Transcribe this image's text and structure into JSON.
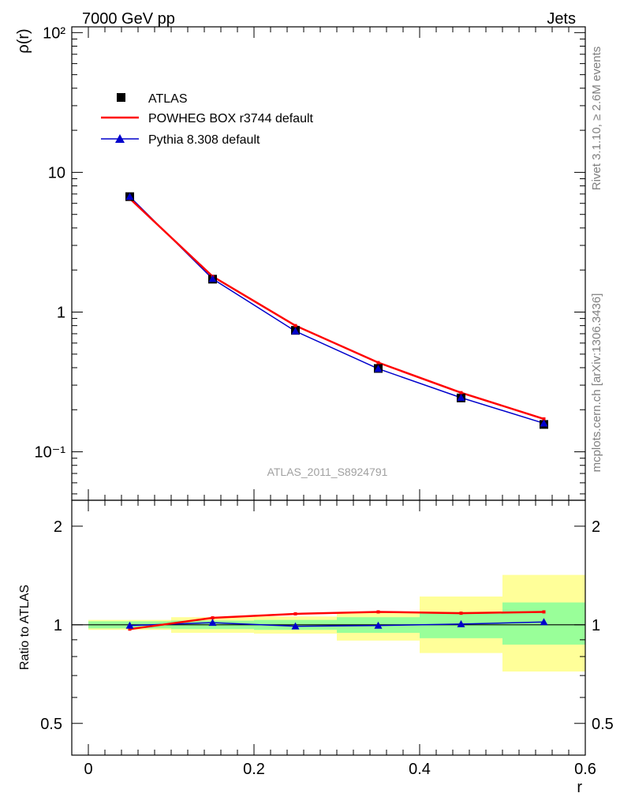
{
  "header": {
    "left": "7000 GeV pp",
    "right": "Jets"
  },
  "side_labels": {
    "rivet": "Rivet 3.1.10, ≥ 2.6M events",
    "source": "mcplots.cern.ch [arXiv:1306.3436]"
  },
  "watermark": "ATLAS_2011_S8924791",
  "chart_data": [
    {
      "type": "scatter",
      "panel": "main",
      "ylabel": "ρ(r)",
      "xlabel": "r",
      "xlim": [
        -0.02,
        0.6
      ],
      "ylim": [
        0.045,
        110
      ],
      "yscale": "log",
      "y_tick_labels": [
        "10⁻¹",
        "1",
        "10",
        "10²"
      ],
      "legend": {
        "position": "top-left",
        "entries": [
          "ATLAS",
          "POWHEG BOX r3744 default",
          "Pythia 8.308 default"
        ]
      },
      "series": [
        {
          "name": "ATLAS",
          "color": "#000000",
          "marker": "square",
          "x": [
            0.05,
            0.15,
            0.25,
            0.35,
            0.45,
            0.55
          ],
          "y": [
            6.7,
            1.72,
            0.74,
            0.395,
            0.243,
            0.157
          ]
        },
        {
          "name": "POWHEG BOX r3744 default",
          "color": "#ff0000",
          "marker": "line",
          "x": [
            0.05,
            0.15,
            0.25,
            0.35,
            0.45,
            0.55
          ],
          "y": [
            6.5,
            1.8,
            0.8,
            0.435,
            0.265,
            0.172
          ]
        },
        {
          "name": "Pythia 8.308 default",
          "color": "#0000cc",
          "marker": "triangle",
          "x": [
            0.05,
            0.15,
            0.25,
            0.35,
            0.45,
            0.55
          ],
          "y": [
            6.7,
            1.73,
            0.73,
            0.393,
            0.244,
            0.16
          ]
        }
      ]
    },
    {
      "type": "line",
      "panel": "ratio",
      "ylabel": "Ratio to ATLAS",
      "xlabel": "r",
      "xlim": [
        -0.02,
        0.6
      ],
      "ylim": [
        0.4,
        2.4
      ],
      "yscale": "log",
      "x_tick_labels": [
        "0",
        "0.2",
        "0.4",
        "0.6"
      ],
      "y_tick_labels": [
        "0.5",
        "1",
        "2"
      ],
      "bands": {
        "bin_edges": [
          0.0,
          0.1,
          0.2,
          0.3,
          0.4,
          0.5,
          0.6
        ],
        "outer_yellow": [
          [
            0.965,
            1.035
          ],
          [
            0.945,
            1.055
          ],
          [
            0.94,
            1.06
          ],
          [
            0.895,
            1.09
          ],
          [
            0.82,
            1.22
          ],
          [
            0.72,
            1.42
          ]
        ],
        "inner_green": [
          [
            0.975,
            1.025
          ],
          [
            0.97,
            1.03
          ],
          [
            0.965,
            1.035
          ],
          [
            0.945,
            1.055
          ],
          [
            0.91,
            1.095
          ],
          [
            0.87,
            1.17
          ]
        ]
      },
      "series": [
        {
          "name": "POWHEG BOX r3744 default",
          "color": "#ff0000",
          "x": [
            0.05,
            0.15,
            0.25,
            0.35,
            0.45,
            0.55
          ],
          "y": [
            0.97,
            1.05,
            1.08,
            1.095,
            1.085,
            1.095
          ]
        },
        {
          "name": "Pythia 8.308 default",
          "color": "#0000cc",
          "x": [
            0.05,
            0.15,
            0.25,
            0.35,
            0.45,
            0.55
          ],
          "y": [
            0.995,
            1.015,
            0.99,
            0.995,
            1.005,
            1.02
          ]
        }
      ]
    }
  ]
}
